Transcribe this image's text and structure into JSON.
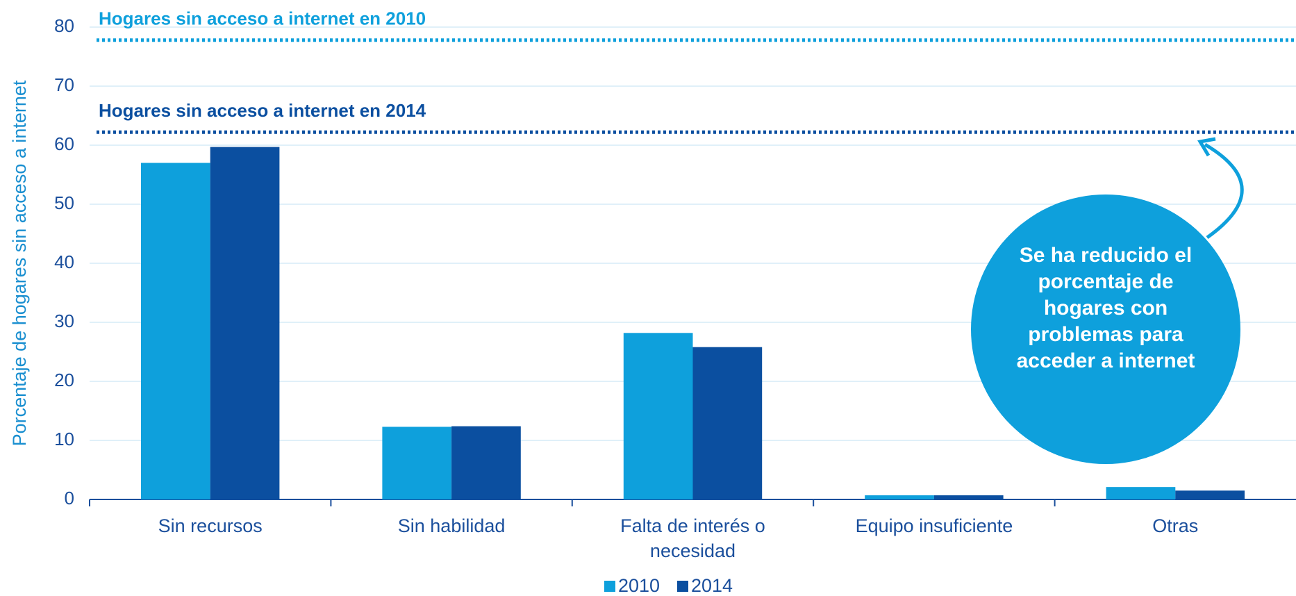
{
  "chart_data": {
    "type": "bar",
    "y_label": "Porcentaje de hogares sin acceso a internet",
    "categories": [
      "Sin recursos",
      "Sin habilidad",
      "Falta de interés o necesidad",
      "Equipo insuficiente",
      "Otras"
    ],
    "series": [
      {
        "name": "2010",
        "color": "#0ea0dc",
        "values": [
          57,
          12.3,
          28.2,
          0.7,
          2.1
        ]
      },
      {
        "name": "2014",
        "color": "#0b4fa0",
        "values": [
          59.7,
          12.4,
          25.8,
          0.7,
          1.5
        ]
      }
    ],
    "reference_lines": [
      {
        "label": "Hogares sin acceso a internet en 2010",
        "value": 77.8,
        "color": "#0ea0dc"
      },
      {
        "label": "Hogares sin acceso a internet en 2014",
        "value": 62.2,
        "color": "#0b4fa0"
      }
    ],
    "annotation": "Se ha reducido el porcentaje de hogares con problemas para acceder a internet",
    "ylim": [
      0,
      80
    ],
    "yticks": [
      0,
      10,
      20,
      30,
      40,
      50,
      60,
      70,
      80
    ],
    "grid": true
  }
}
